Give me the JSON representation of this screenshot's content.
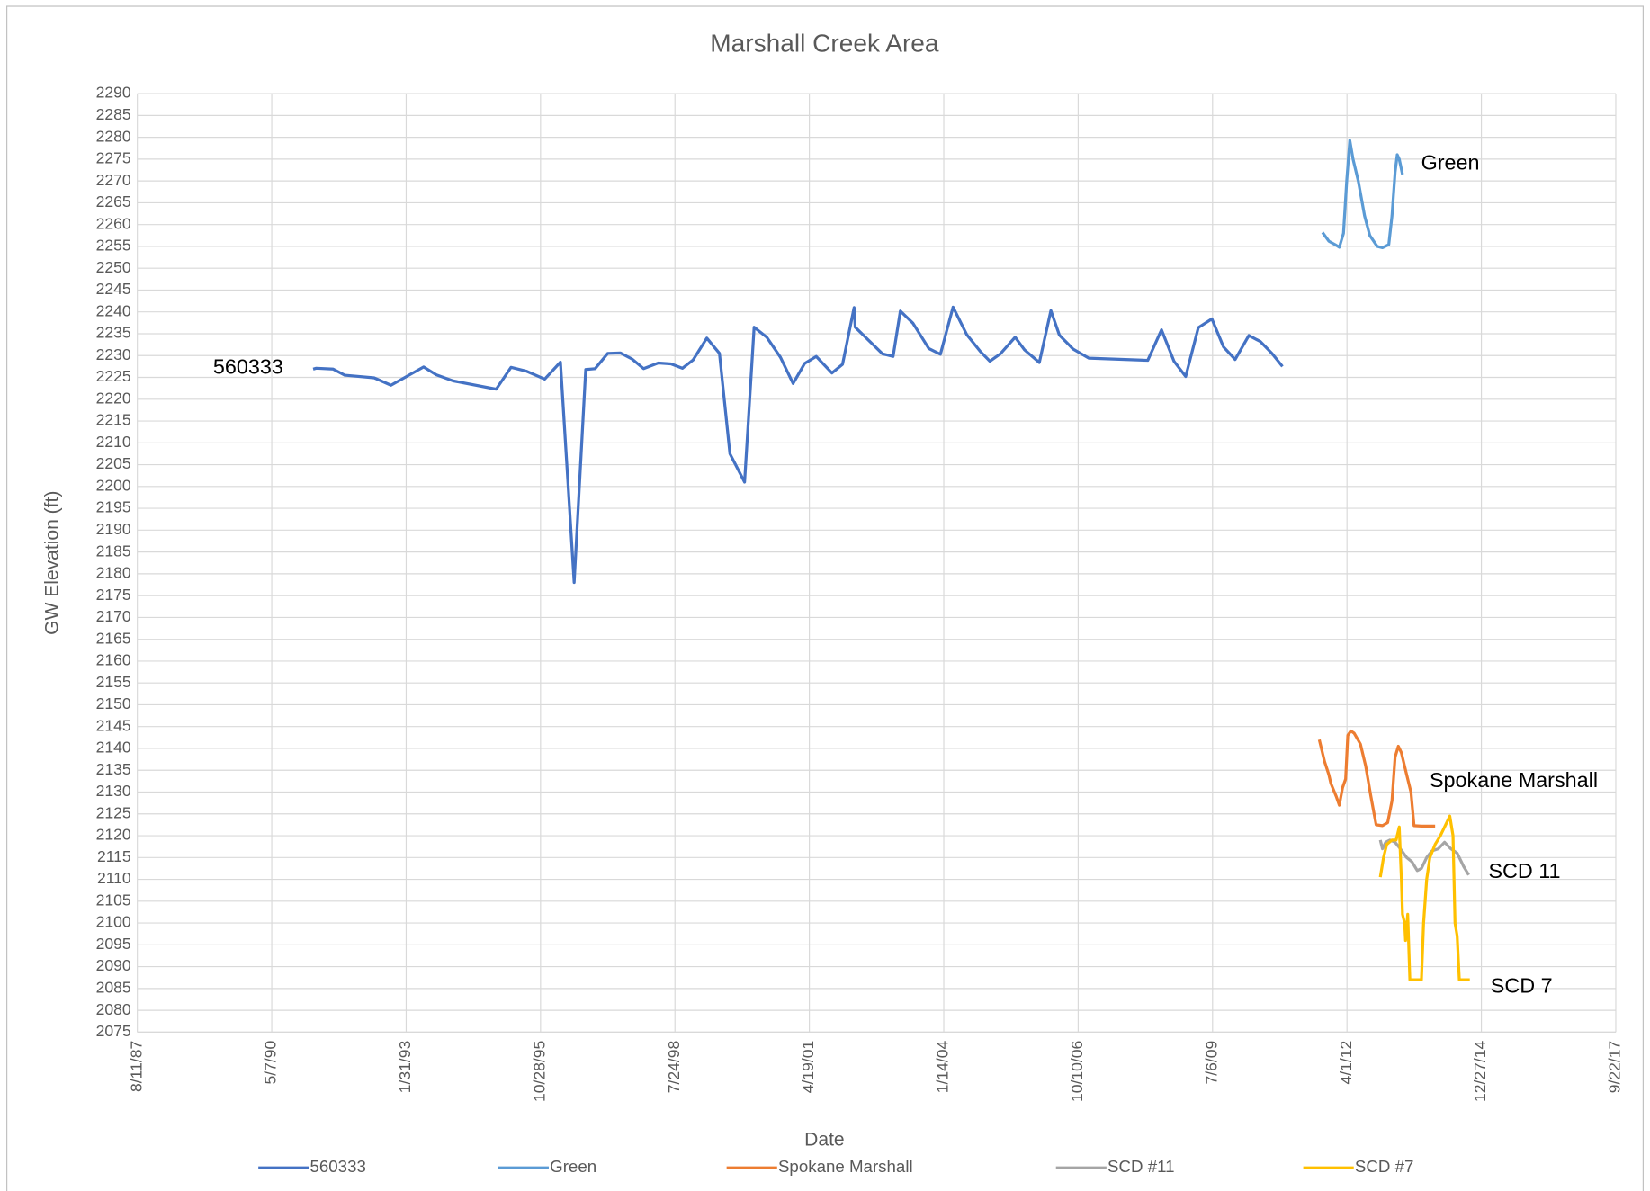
{
  "chart_data": {
    "type": "line",
    "title": "Marshall Creek Area",
    "xlabel": "Date",
    "ylabel": "GW Elevation (ft)",
    "xlim": [
      32000,
      43000
    ],
    "xticks": [
      {
        "value": 32000,
        "label": "8/11/87"
      },
      {
        "value": 33000,
        "label": "5/7/90"
      },
      {
        "value": 34000,
        "label": "1/31/93"
      },
      {
        "value": 35000,
        "label": "10/28/95"
      },
      {
        "value": 36000,
        "label": "7/24/98"
      },
      {
        "value": 37000,
        "label": "4/19/01"
      },
      {
        "value": 38000,
        "label": "1/14/04"
      },
      {
        "value": 39000,
        "label": "10/10/06"
      },
      {
        "value": 40000,
        "label": "7/6/09"
      },
      {
        "value": 41000,
        "label": "4/1/12"
      },
      {
        "value": 42000,
        "label": "12/27/14"
      },
      {
        "value": 43000,
        "label": "9/22/17"
      }
    ],
    "ylim": [
      2075,
      2290
    ],
    "yticks": [
      2075,
      2080,
      2085,
      2090,
      2095,
      2100,
      2105,
      2110,
      2115,
      2120,
      2125,
      2130,
      2135,
      2140,
      2145,
      2150,
      2155,
      2160,
      2165,
      2170,
      2175,
      2180,
      2185,
      2190,
      2195,
      2200,
      2205,
      2210,
      2215,
      2220,
      2225,
      2230,
      2235,
      2240,
      2245,
      2250,
      2255,
      2260,
      2265,
      2270,
      2275,
      2280,
      2285,
      2290
    ],
    "grid": true,
    "legend": "bottom",
    "annotations": [
      "560333",
      "Green",
      "Spokane Marshall",
      "SCD 11",
      "SCD 7"
    ],
    "series": [
      {
        "name": "560333",
        "color": "#4472c4",
        "x": [
          33308,
          33331,
          33457,
          33543,
          33762,
          33887,
          34130,
          34224,
          34349,
          34670,
          34780,
          34897,
          35031,
          35148,
          35250,
          35336,
          35406,
          35500,
          35594,
          35681,
          35767,
          35876,
          35970,
          36056,
          36135,
          36237,
          36331,
          36409,
          36518,
          36589,
          36683,
          36785,
          36879,
          36965,
          37051,
          37168,
          37247,
          37333,
          37341,
          37544,
          37623,
          37677,
          37771,
          37889,
          37975,
          38069,
          38171,
          38273,
          38343,
          38421,
          38531,
          38601,
          38711,
          38797,
          38860,
          38962,
          39079,
          39518,
          39620,
          39713,
          39800,
          39894,
          39995,
          40081,
          40168,
          40270,
          40356,
          40442,
          40520
        ],
        "values": [
          2226.9,
          2227.1,
          2226.9,
          2225.5,
          2224.9,
          2223.2,
          2227.4,
          2225.6,
          2224.2,
          2222.3,
          2227.3,
          2226.4,
          2224.6,
          2228.5,
          2178,
          2226.8,
          2227,
          2230.5,
          2230.6,
          2229.2,
          2227,
          2228.3,
          2228.1,
          2227.1,
          2229,
          2234,
          2230.5,
          2207.5,
          2201,
          2236.5,
          2234.2,
          2229.6,
          2223.6,
          2228.2,
          2229.8,
          2226,
          2228,
          2241,
          2236.5,
          2230.4,
          2229.8,
          2240.2,
          2237.4,
          2231.6,
          2230.3,
          2241.1,
          2234.8,
          2230.9,
          2228.7,
          2230.4,
          2234.2,
          2231.3,
          2228.4,
          2240.3,
          2234.7,
          2231.5,
          2229.4,
          2228.9,
          2235.9,
          2228.7,
          2225.2,
          2236.4,
          2238.4,
          2232,
          2229.1,
          2234.6,
          2233.2,
          2230.5,
          2227.5
        ]
      },
      {
        "name": "Green",
        "color": "#5b9bd5",
        "x": [
          40818,
          40865,
          40912,
          40943,
          40974,
          40998,
          41021,
          41045,
          41084,
          41131,
          41170,
          41225,
          41264,
          41311,
          41335,
          41358,
          41374,
          41389,
          41413
        ],
        "values": [
          2258.2,
          2256.2,
          2255.4,
          2254.8,
          2258,
          2270,
          2279.3,
          2275,
          2270,
          2262,
          2257.5,
          2255,
          2254.7,
          2255.4,
          2262,
          2272,
          2276,
          2275,
          2271.5
        ]
      },
      {
        "name": "Spokane Marshall",
        "color": "#ed7d31",
        "x": [
          40794,
          40833,
          40865,
          40880,
          40920,
          40943,
          40967,
          40990,
          41006,
          41029,
          41053,
          41100,
          41139,
          41178,
          41217,
          41264,
          41303,
          41335,
          41358,
          41382,
          41405,
          41444,
          41476,
          41499,
          41554,
          41656
        ],
        "values": [
          2142,
          2137,
          2134,
          2132,
          2129,
          2127,
          2131,
          2133,
          2143,
          2144,
          2143.5,
          2141,
          2136,
          2129,
          2122.5,
          2122.3,
          2123,
          2128,
          2138,
          2140.5,
          2139,
          2134,
          2130,
          2122.3,
          2122.2,
          2122.2
        ]
      },
      {
        "name": "SCD #11",
        "color": "#a5a5a5",
        "x": [
          41248,
          41264,
          41288,
          41319,
          41358,
          41397,
          41444,
          41484,
          41523,
          41554,
          41593,
          41632,
          41679,
          41726,
          41773,
          41820,
          41867,
          41906
        ],
        "values": [
          2119,
          2117,
          2118.5,
          2119,
          2118.5,
          2117,
          2115,
          2114,
          2112,
          2112.5,
          2115,
          2116.5,
          2117,
          2118.5,
          2117,
          2116,
          2113,
          2111
        ]
      },
      {
        "name": "SCD #7",
        "color": "#ffc000",
        "x": [
          41248,
          41272,
          41296,
          41335,
          41366,
          41389,
          41405,
          41413,
          41429,
          41436,
          41452,
          41468,
          41507,
          41554,
          41570,
          41593,
          41617,
          41656,
          41695,
          41742,
          41765,
          41789,
          41804,
          41820,
          41836,
          41914
        ],
        "values": [
          2110.5,
          2115,
          2118,
          2119,
          2119,
          2122,
          2110,
          2102,
          2100,
          2096,
          2102,
          2087,
          2087,
          2087,
          2100,
          2110,
          2115,
          2118,
          2120,
          2123,
          2124.5,
          2120,
          2100,
          2097,
          2087,
          2087
        ]
      }
    ]
  }
}
